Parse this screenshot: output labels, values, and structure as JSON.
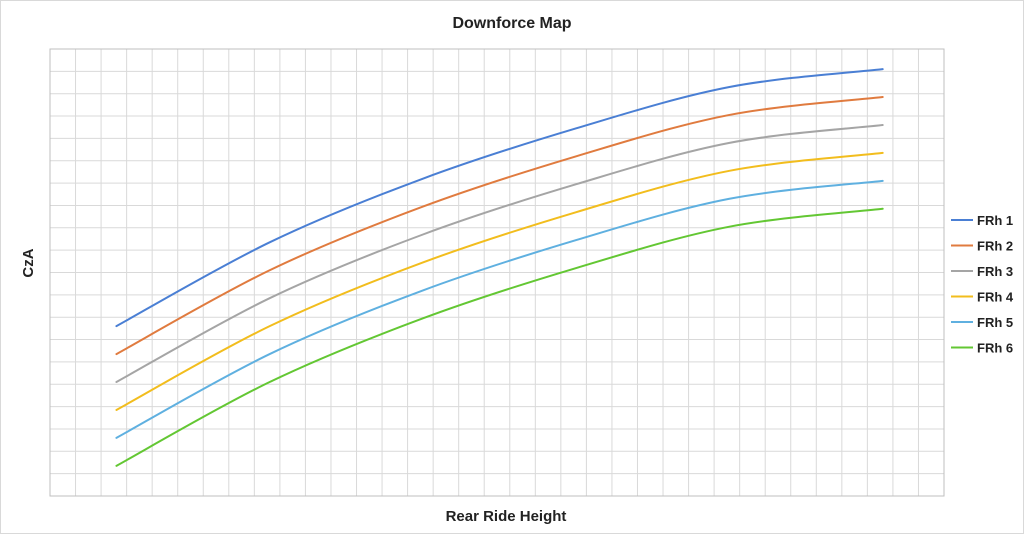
{
  "chart_data": {
    "type": "line",
    "title": "Downforce Map",
    "xlabel": "Rear Ride Height",
    "ylabel": "CzA",
    "grid": true,
    "x_ticks_labeled": false,
    "y_ticks_labeled": false,
    "xlim": [
      0,
      35
    ],
    "ylim": [
      0,
      20
    ],
    "legend_position": "right",
    "x": [
      2.6,
      8.6,
      14.6,
      20.6,
      26.6,
      32.6
    ],
    "series": [
      {
        "name": "FRh 1",
        "color": "#4a7fd4",
        "values": [
          7.6,
          11.35,
          14.2,
          16.45,
          18.3,
          19.1
        ]
      },
      {
        "name": "FRh 2",
        "color": "#e07b3f",
        "values": [
          6.35,
          10.1,
          12.95,
          15.2,
          17.05,
          17.85
        ]
      },
      {
        "name": "FRh 3",
        "color": "#a5a5a5",
        "values": [
          5.1,
          8.85,
          11.7,
          13.95,
          15.8,
          16.6
        ]
      },
      {
        "name": "FRh 4",
        "color": "#f2bd1d",
        "values": [
          3.85,
          7.6,
          10.45,
          12.7,
          14.55,
          15.35
        ]
      },
      {
        "name": "FRh 5",
        "color": "#5fb0e0",
        "values": [
          2.6,
          6.35,
          9.2,
          11.45,
          13.3,
          14.1
        ]
      },
      {
        "name": "FRh 6",
        "color": "#63c733",
        "values": [
          1.35,
          5.1,
          7.95,
          10.2,
          12.05,
          12.85
        ]
      }
    ]
  }
}
